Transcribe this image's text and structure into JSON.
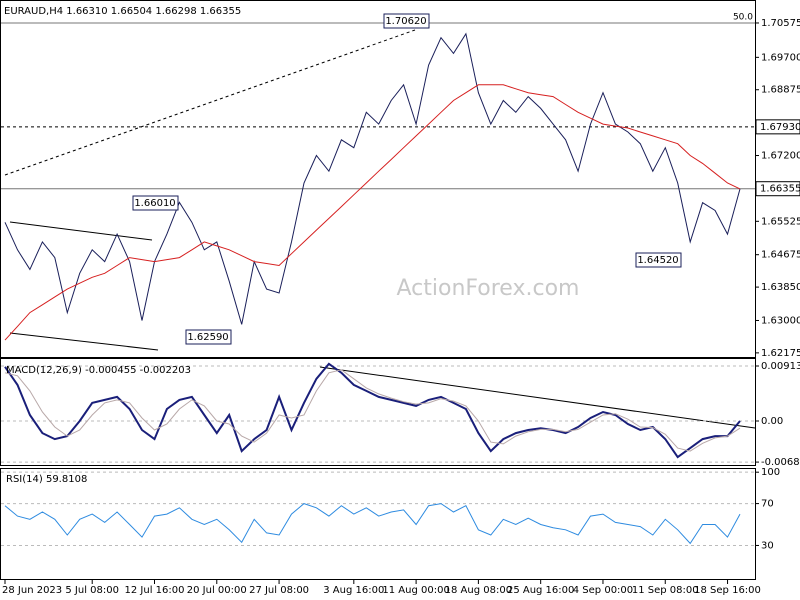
{
  "header": "EURAUD,H4  1.66310 1.66504 1.66298 1.66355",
  "watermark": "ActionForex.com",
  "annotations": [
    "1.70620",
    "1.66010",
    "1.62590",
    "1.64520"
  ],
  "chart_data": [
    {
      "type": "line",
      "categories": [
        "28 Jun 2023",
        null,
        null,
        null,
        null,
        null,
        null,
        "5 Jul 08:00",
        null,
        null,
        null,
        null,
        "12 Jul 16:00",
        null,
        null,
        null,
        null,
        "20 Jul 00:00",
        null,
        null,
        null,
        null,
        "27 Jul 08:00",
        null,
        null,
        null,
        null,
        null,
        "3 Aug 16:00",
        null,
        null,
        null,
        null,
        "11 Aug 00:00",
        null,
        null,
        null,
        null,
        "18 Aug 08:00",
        null,
        null,
        null,
        null,
        "25 Aug 16:00",
        null,
        null,
        null,
        null,
        "4 Sep 00:00",
        null,
        null,
        null,
        null,
        "11 Sep 08:00",
        null,
        null,
        null,
        null,
        "18 Sep 16:00",
        null
      ],
      "series": [
        {
          "name": "EURAUD",
          "color": "#1a1f5a",
          "values": [
            1.655,
            1.648,
            1.643,
            1.65,
            1.646,
            1.632,
            1.642,
            1.648,
            1.645,
            1.652,
            1.645,
            1.63,
            1.645,
            1.652,
            1.6601,
            1.655,
            1.648,
            1.65,
            1.64,
            1.629,
            1.645,
            1.638,
            1.637,
            1.65,
            1.665,
            1.672,
            1.668,
            1.676,
            1.674,
            1.683,
            1.68,
            1.686,
            1.69,
            1.68,
            1.695,
            1.702,
            1.698,
            1.703,
            1.688,
            1.68,
            1.686,
            1.683,
            1.687,
            1.684,
            1.68,
            1.676,
            1.668,
            1.68,
            1.688,
            1.68,
            1.678,
            1.675,
            1.668,
            1.674,
            1.665,
            1.65,
            1.66,
            1.658,
            1.652,
            1.6635
          ]
        },
        {
          "name": "MA",
          "color": "#d62020",
          "values": [
            1.625,
            1.6285,
            1.632,
            1.634,
            1.636,
            1.638,
            1.6395,
            1.641,
            1.642,
            1.644,
            1.646,
            1.6455,
            1.645,
            1.6455,
            1.646,
            1.648,
            1.65,
            1.649,
            1.648,
            1.6465,
            1.645,
            1.6445,
            1.644,
            1.647,
            1.65,
            1.653,
            1.656,
            1.659,
            1.662,
            1.665,
            1.668,
            1.671,
            1.674,
            1.677,
            1.68,
            1.683,
            1.686,
            1.688,
            1.69,
            1.69,
            1.69,
            1.689,
            1.688,
            1.6875,
            1.687,
            1.685,
            1.683,
            1.6815,
            1.68,
            1.6795,
            1.679,
            1.678,
            1.677,
            1.676,
            1.675,
            1.672,
            1.67,
            1.6675,
            1.665,
            1.6635
          ]
        }
      ],
      "ylim": [
        1.6207,
        1.7116
      ],
      "yticks": [
        {
          "value": 1.62175,
          "label": "1.62175"
        },
        {
          "value": 1.63,
          "label": "1.63000"
        },
        {
          "value": 1.6385,
          "label": "1.63850"
        },
        {
          "value": 1.64675,
          "label": "1.64675"
        },
        {
          "value": 1.65525,
          "label": "1.65525"
        },
        {
          "value": 1.672,
          "label": "1.67200"
        },
        {
          "value": 1.68875,
          "label": "1.68875"
        },
        {
          "value": 1.697,
          "label": "1.69700"
        },
        {
          "value": 1.70575,
          "label": "1.70575"
        }
      ],
      "levels": [
        {
          "value": 1.70575,
          "label": "50.0",
          "style": "solid"
        },
        {
          "value": 1.6793,
          "label": "1.67930",
          "style": "dashed"
        },
        {
          "value": 1.66355,
          "label": "1.66355",
          "style": "solid"
        }
      ]
    },
    {
      "type": "line",
      "title": "MACD(12,26,9) -0.000455 -0.002203",
      "series": [
        {
          "name": "MACD",
          "color": "#1a1f7a",
          "values": [
            0.009,
            0.006,
            0.001,
            -0.002,
            -0.003,
            -0.0025,
            0.0,
            0.003,
            0.0035,
            0.004,
            0.002,
            -0.0015,
            -0.003,
            0.002,
            0.0035,
            0.004,
            0.001,
            -0.002,
            0.001,
            -0.005,
            -0.003,
            -0.0015,
            0.004,
            -0.0015,
            0.003,
            0.007,
            0.0095,
            0.008,
            0.006,
            0.005,
            0.004,
            0.0035,
            0.003,
            0.0025,
            0.0035,
            0.004,
            0.003,
            0.002,
            -0.002,
            -0.005,
            -0.003,
            -0.002,
            -0.0015,
            -0.0012,
            -0.0015,
            -0.002,
            -0.001,
            0.0005,
            0.0015,
            0.001,
            -0.0005,
            -0.0015,
            -0.001,
            -0.003,
            -0.006,
            -0.0045,
            -0.003,
            -0.0025,
            -0.0025,
            0.0
          ]
        },
        {
          "name": "Signal",
          "color": "#b8a8a8",
          "values": [
            0.008,
            0.0075,
            0.005,
            0.0015,
            -0.001,
            -0.0025,
            -0.0015,
            0.001,
            0.003,
            0.0035,
            0.003,
            0.0005,
            -0.0015,
            -0.0005,
            0.002,
            0.0035,
            0.0025,
            0.0,
            -0.0005,
            -0.0025,
            -0.0035,
            -0.002,
            0.001,
            0.0005,
            0.001,
            0.005,
            0.008,
            0.0085,
            0.007,
            0.0055,
            0.0045,
            0.0038,
            0.0032,
            0.0028,
            0.003,
            0.0037,
            0.0033,
            0.0025,
            0.0,
            -0.0035,
            -0.0038,
            -0.0025,
            -0.0018,
            -0.0014,
            -0.0014,
            -0.0018,
            -0.0014,
            -0.0002,
            0.001,
            0.0012,
            0.0003,
            -0.001,
            -0.0011,
            -0.0022,
            -0.0045,
            -0.005,
            -0.0037,
            -0.0028,
            -0.0025,
            -0.0012
          ]
        }
      ],
      "ylim": [
        -0.00747,
        0.01046
      ],
      "yticks": [
        0.00913,
        {
          "value": 0,
          "label": "0.00"
        },
        -0.00682
      ]
    },
    {
      "type": "line",
      "title": "RSI(14) 59.8108",
      "series": [
        {
          "name": "RSI",
          "color": "#2e8be0",
          "values": [
            68,
            58,
            55,
            62,
            55,
            40,
            55,
            60,
            52,
            62,
            50,
            38,
            58,
            60,
            66,
            55,
            50,
            55,
            45,
            33,
            55,
            42,
            40,
            60,
            70,
            66,
            58,
            68,
            60,
            66,
            58,
            62,
            64,
            50,
            68,
            70,
            62,
            68,
            45,
            40,
            55,
            50,
            56,
            50,
            47,
            45,
            40,
            58,
            60,
            52,
            50,
            48,
            40,
            55,
            45,
            32,
            50,
            50,
            38,
            60
          ]
        }
      ],
      "ylim": [
        -3,
        104
      ],
      "yticks": [
        100,
        70,
        30
      ]
    }
  ]
}
